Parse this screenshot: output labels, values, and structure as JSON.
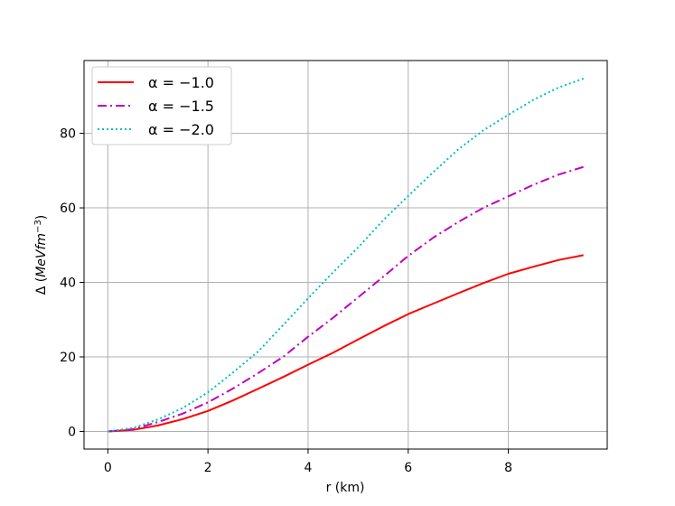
{
  "chart_data": {
    "type": "line",
    "xlabel": "r (km)",
    "ylabel": "Δ (MeVfm⁻³)",
    "ylabel_main": "Δ (",
    "ylabel_italic": "MeVfm",
    "ylabel_sup": "−3",
    "ylabel_close": ")",
    "xlim": [
      -0.475,
      9.975
    ],
    "ylim": [
      -4.74,
      99.54
    ],
    "xticks": [
      0,
      2,
      4,
      6,
      8
    ],
    "yticks": [
      0,
      20,
      40,
      60,
      80
    ],
    "grid": true,
    "legend_position": "top-left",
    "x": [
      0,
      0.5,
      1.0,
      1.5,
      2.0,
      2.5,
      3.0,
      3.5,
      4.0,
      4.5,
      5.0,
      5.5,
      6.0,
      6.5,
      7.0,
      7.5,
      8.0,
      8.5,
      9.0,
      9.5
    ],
    "series": [
      {
        "name": "α = −1.0",
        "color": "#ff0000",
        "style": "solid",
        "values": [
          0,
          0.4,
          1.6,
          3.3,
          5.5,
          8.3,
          11.4,
          14.6,
          17.9,
          21.1,
          24.7,
          28.2,
          31.5,
          34.3,
          37.1,
          39.8,
          42.3,
          44.2,
          46.0,
          47.3
        ]
      },
      {
        "name": "α = −1.5",
        "color": "#bf00bf",
        "style": "dashdot",
        "values": [
          0,
          0.6,
          2.5,
          4.8,
          7.8,
          11.5,
          15.6,
          20.0,
          25.4,
          30.5,
          36.0,
          41.5,
          47.1,
          52.0,
          56.2,
          60.0,
          63.1,
          66.2,
          68.9,
          71.0
        ]
      },
      {
        "name": "α = −2.0",
        "color": "#00bfbf",
        "style": "dotted",
        "values": [
          0,
          0.9,
          3.2,
          6.3,
          10.5,
          15.8,
          21.4,
          28.5,
          35.7,
          42.7,
          49.4,
          56.7,
          63.2,
          69.6,
          75.7,
          80.8,
          85.0,
          89.0,
          92.3,
          94.7
        ]
      }
    ]
  }
}
